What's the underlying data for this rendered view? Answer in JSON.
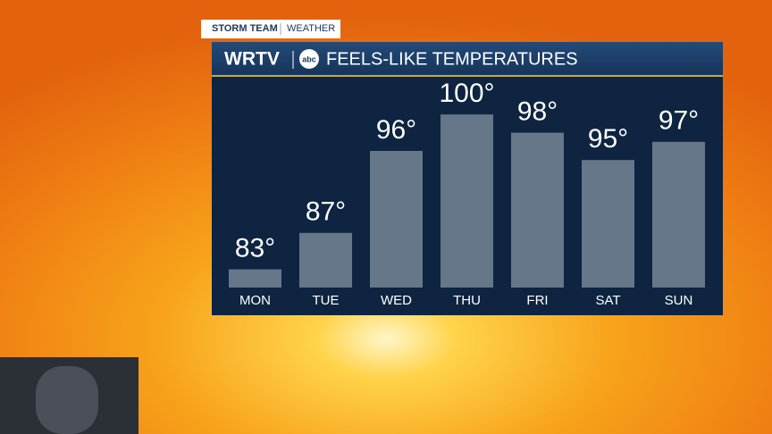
{
  "chart_data": {
    "type": "bar",
    "tag": "STORM TEAM",
    "tag_section": "WEATHER",
    "brand": "WRTV",
    "logo": "abc",
    "title": "FEELS-LIKE TEMPERATURES",
    "categories": [
      "MON",
      "TUE",
      "WED",
      "THU",
      "FRI",
      "SAT",
      "SUN"
    ],
    "values": [
      83,
      87,
      96,
      100,
      98,
      95,
      97
    ],
    "value_labels": [
      "83°",
      "87°",
      "96°",
      "100°",
      "98°",
      "95°",
      "97°"
    ],
    "color": "#66778a",
    "ylim": [
      81,
      101
    ]
  }
}
